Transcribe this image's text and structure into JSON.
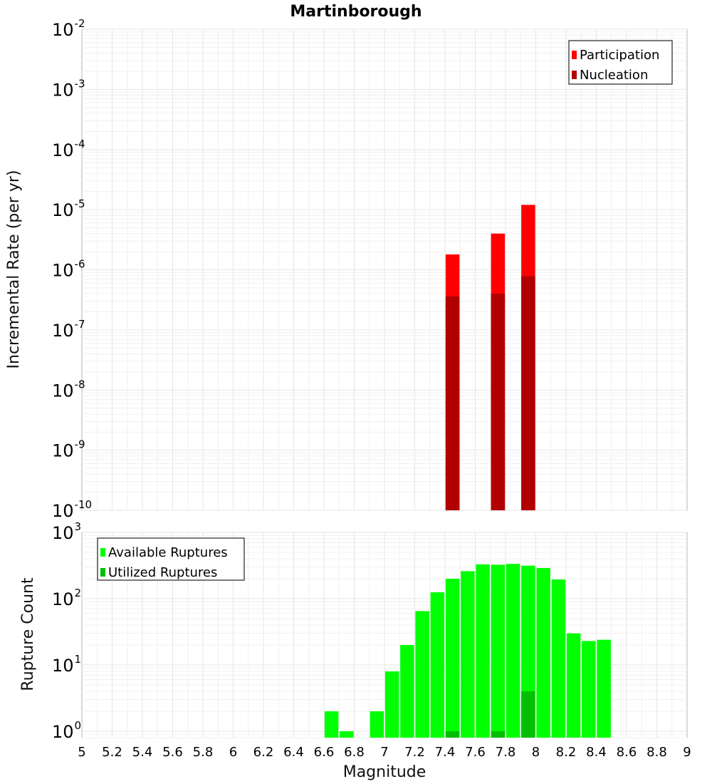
{
  "chart_data": [
    {
      "type": "bar",
      "title": "Martinborough",
      "xlabel": "",
      "ylabel": "Incremental Rate (per yr)",
      "yscale": "log",
      "ylim": [
        1e-10,
        0.01
      ],
      "xlim": [
        5,
        9
      ],
      "y_ticks": [
        {
          "base": "10",
          "exp": "-10"
        },
        {
          "base": "10",
          "exp": "-9"
        },
        {
          "base": "10",
          "exp": "-8"
        },
        {
          "base": "10",
          "exp": "-7"
        },
        {
          "base": "10",
          "exp": "-6"
        },
        {
          "base": "10",
          "exp": "-5"
        },
        {
          "base": "10",
          "exp": "-4"
        },
        {
          "base": "10",
          "exp": "-3"
        },
        {
          "base": "10",
          "exp": "-2"
        }
      ],
      "legend_position": "top-right",
      "series": [
        {
          "name": "Participation",
          "color": "#ff0000",
          "x": [
            7.45,
            7.75,
            7.95
          ],
          "values": [
            1.8e-06,
            4e-06,
            1.2e-05
          ]
        },
        {
          "name": "Nucleation",
          "color": "#b00000",
          "x": [
            7.45,
            7.75,
            7.95
          ],
          "values": [
            3.6e-07,
            4e-07,
            7.8e-07
          ]
        }
      ]
    },
    {
      "type": "bar",
      "title": "",
      "xlabel": "Magnitude",
      "ylabel": "Rupture Count",
      "yscale": "log",
      "ylim": [
        0.8,
        1000
      ],
      "xlim": [
        5,
        9
      ],
      "x_ticks": [
        "5",
        "5.2",
        "5.4",
        "5.6",
        "5.8",
        "6",
        "6.2",
        "6.4",
        "6.6",
        "6.8",
        "7",
        "7.2",
        "7.4",
        "7.6",
        "7.8",
        "8",
        "8.2",
        "8.4",
        "8.6",
        "8.8",
        "9"
      ],
      "y_ticks": [
        {
          "base": "10",
          "exp": "0"
        },
        {
          "base": "10",
          "exp": "1"
        },
        {
          "base": "10",
          "exp": "2"
        },
        {
          "base": "10",
          "exp": "3"
        }
      ],
      "legend_position": "top-left",
      "series": [
        {
          "name": "Available Ruptures",
          "color": "#00ff00",
          "x": [
            6.65,
            6.75,
            6.95,
            7.05,
            7.15,
            7.25,
            7.35,
            7.45,
            7.55,
            7.65,
            7.75,
            7.85,
            7.95,
            8.05,
            8.15,
            8.25,
            8.35,
            8.45
          ],
          "values": [
            2,
            1,
            2,
            8,
            20,
            65,
            125,
            200,
            260,
            330,
            325,
            335,
            315,
            290,
            195,
            30,
            23,
            24
          ]
        },
        {
          "name": "Utilized Ruptures",
          "color": "#00bf00",
          "x": [
            7.45,
            7.75,
            7.95
          ],
          "values": [
            1,
            1,
            4
          ]
        }
      ]
    }
  ]
}
